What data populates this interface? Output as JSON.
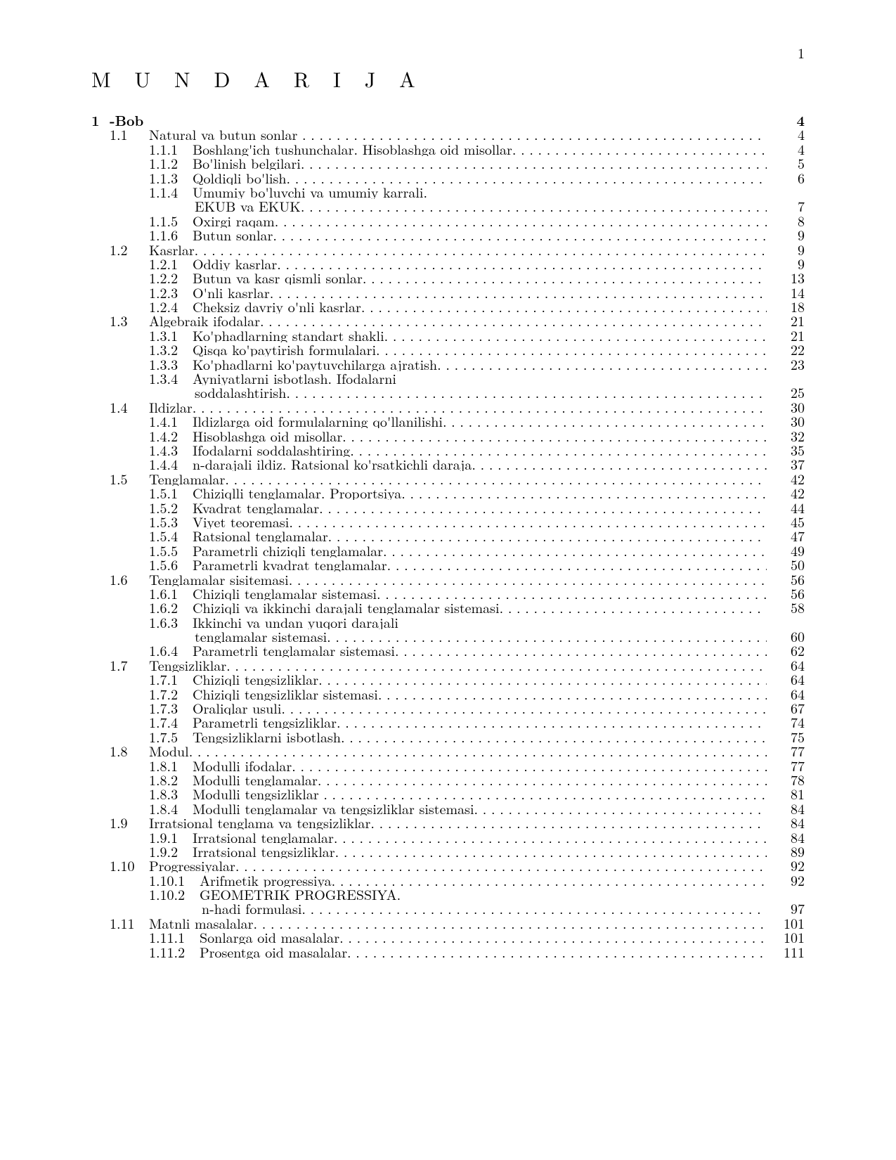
{
  "page": {
    "number": "1"
  },
  "title": "M U N D A R I J A",
  "toc": [
    {
      "level": 0,
      "num": "1",
      "txt": "-Bob",
      "pg": "4",
      "dots": false
    },
    {
      "level": 1,
      "num": "1.1",
      "txt": "Natural va butun sonlar",
      "pg": "4",
      "dots": true
    },
    {
      "level": 2,
      "num": "1.1.1",
      "txt": "Boshlang'ich tushunchalar. Hisoblashga oid misollar.",
      "pg": "4",
      "dots": true
    },
    {
      "level": 2,
      "num": "1.1.2",
      "txt": "Bo'linish belgilari.",
      "pg": "5",
      "dots": true
    },
    {
      "level": 2,
      "num": "1.1.3",
      "txt": "Qoldiqli bo'lish.",
      "pg": "6",
      "dots": true
    },
    {
      "level": 2,
      "num": "1.1.4",
      "txt": "Umumiy bo'luvchi va umumiy karrali.",
      "dots": false
    },
    {
      "level": "cont",
      "txt": "EKUB va EKUK.",
      "pg": "7",
      "dots": true
    },
    {
      "level": 2,
      "num": "1.1.5",
      "txt": "Oxirgi raqam.",
      "pg": "8",
      "dots": true
    },
    {
      "level": 2,
      "num": "1.1.6",
      "txt": "Butun sonlar.",
      "pg": "9",
      "dots": true
    },
    {
      "level": 1,
      "num": "1.2",
      "txt": "Kasrlar.",
      "pg": "9",
      "dots": true
    },
    {
      "level": 2,
      "num": "1.2.1",
      "txt": "Oddiy kasrlar.",
      "pg": "9",
      "dots": true
    },
    {
      "level": 2,
      "num": "1.2.2",
      "txt": "Butun va kasr qismli sonlar.",
      "pg": "13",
      "dots": true
    },
    {
      "level": 2,
      "num": "1.2.3",
      "txt": "O'nli kasrlar.",
      "pg": "14",
      "dots": true
    },
    {
      "level": 2,
      "num": "1.2.4",
      "txt": "Cheksiz davriy o'nli kasrlar.",
      "pg": "18",
      "dots": true
    },
    {
      "level": 1,
      "num": "1.3",
      "txt": "Algebraik ifodalar.",
      "pg": "21",
      "dots": true
    },
    {
      "level": 2,
      "num": "1.3.1",
      "txt": "Ko'phadlarning standart shakli.",
      "pg": "21",
      "dots": true
    },
    {
      "level": 2,
      "num": "1.3.2",
      "txt": "Qisqa ko'paytirish formulalari.",
      "pg": "22",
      "dots": true
    },
    {
      "level": 2,
      "num": "1.3.3",
      "txt": "Ko'phadlarni ko'paytuvchilarga ajratish.",
      "pg": "23",
      "dots": true
    },
    {
      "level": 2,
      "num": "1.3.4",
      "txt": "Ayniyatlarni isbotlash. Ifodalarni",
      "dots": false
    },
    {
      "level": "cont",
      "txt": "soddalashtirish.",
      "pg": "25",
      "dots": true
    },
    {
      "level": 1,
      "num": "1.4",
      "txt": "Ildizlar.",
      "pg": "30",
      "dots": true
    },
    {
      "level": 2,
      "num": "1.4.1",
      "txt": "Ildizlarga oid formulalarning qo'llanilishi.",
      "pg": "30",
      "dots": true
    },
    {
      "level": 2,
      "num": "1.4.2",
      "txt": "Hisoblashga oid misollar.",
      "pg": "32",
      "dots": true
    },
    {
      "level": 2,
      "num": "1.4.3",
      "txt": "Ifodalarni soddalashtiring.",
      "pg": "35",
      "dots": true
    },
    {
      "level": 2,
      "num": "1.4.4",
      "txt": "n-darajali ildiz. Ratsional ko'rsatkichli daraja.",
      "pg": "37",
      "dots": true
    },
    {
      "level": 1,
      "num": "1.5",
      "txt": "Tenglamalar.",
      "pg": "42",
      "dots": true
    },
    {
      "level": 2,
      "num": "1.5.1",
      "txt": "Chiziqlli tenglamalar. Proportsiya.",
      "pg": "42",
      "dots": true
    },
    {
      "level": 2,
      "num": "1.5.2",
      "txt": "Kvadrat tenglamalar.",
      "pg": "44",
      "dots": true
    },
    {
      "level": 2,
      "num": "1.5.3",
      "txt": "Viyet teoremasi.",
      "pg": "45",
      "dots": true
    },
    {
      "level": 2,
      "num": "1.5.4",
      "txt": "Ratsional tenglamalar.",
      "pg": "47",
      "dots": true
    },
    {
      "level": 2,
      "num": "1.5.5",
      "txt": "Parametrli chiziqli tenglamalar.",
      "pg": "49",
      "dots": true
    },
    {
      "level": 2,
      "num": "1.5.6",
      "txt": "Parametrli kvadrat tenglamalar.",
      "pg": "50",
      "dots": true
    },
    {
      "level": 1,
      "num": "1.6",
      "txt": "Tenglamalar sisitemasi.",
      "pg": "56",
      "dots": true
    },
    {
      "level": 2,
      "num": "1.6.1",
      "txt": "Chiziqli tenglamalar sistemasi.",
      "pg": "56",
      "dots": true
    },
    {
      "level": 2,
      "num": "1.6.2",
      "txt": "Chiziqli va ikkinchi darajali tenglamalar sistemasi.",
      "pg": "58",
      "dots": true
    },
    {
      "level": 2,
      "num": "1.6.3",
      "txt": "Ikkinchi va undan yuqori darajali",
      "dots": false
    },
    {
      "level": "cont",
      "txt": "tenglamalar sistemasi.",
      "pg": "60",
      "dots": true
    },
    {
      "level": 2,
      "num": "1.6.4",
      "txt": "Parametrli tenglamalar sistemasi.",
      "pg": "62",
      "dots": true
    },
    {
      "level": 1,
      "num": "1.7",
      "txt": "Tengsizliklar.",
      "pg": "64",
      "dots": true
    },
    {
      "level": 2,
      "num": "1.7.1",
      "txt": "Chiziqli tengsizliklar.",
      "pg": "64",
      "dots": true
    },
    {
      "level": 2,
      "num": "1.7.2",
      "txt": "Chiziqli tengsizliklar sistemasi.",
      "pg": "64",
      "dots": true
    },
    {
      "level": 2,
      "num": "1.7.3",
      "txt": "Oraliqlar usuli.",
      "pg": "67",
      "dots": true
    },
    {
      "level": 2,
      "num": "1.7.4",
      "txt": "Parametrli tengsizliklar.",
      "pg": "74",
      "dots": true
    },
    {
      "level": 2,
      "num": "1.7.5",
      "txt": "Tengsizliklarni isbotlash.",
      "pg": "75",
      "dots": true
    },
    {
      "level": 1,
      "num": "1.8",
      "txt": "Modul.",
      "pg": "77",
      "dots": true
    },
    {
      "level": 2,
      "num": "1.8.1",
      "txt": "Modulli ifodalar.",
      "pg": "77",
      "dots": true
    },
    {
      "level": 2,
      "num": "1.8.2",
      "txt": "Modulli tenglamalar.",
      "pg": "78",
      "dots": true
    },
    {
      "level": 2,
      "num": "1.8.3",
      "txt": "Modulli tengsizliklar",
      "pg": "81",
      "dots": true
    },
    {
      "level": 2,
      "num": "1.8.4",
      "txt": "Modulli tenglamalar va tengsizliklar sistemasi.",
      "pg": "84",
      "dots": true
    },
    {
      "level": 1,
      "num": "1.9",
      "txt": "Irratsional tenglama va tengsizliklar.",
      "pg": "84",
      "dots": true
    },
    {
      "level": 2,
      "num": "1.9.1",
      "txt": "Irratsional tenglamalar.",
      "pg": "84",
      "dots": true
    },
    {
      "level": 2,
      "num": "1.9.2",
      "txt": "Irratsional tengsizliklar.",
      "pg": "89",
      "dots": true
    },
    {
      "level": 1,
      "num": "1.10",
      "txt": "Progressiyalar.",
      "pg": "92",
      "dots": true
    },
    {
      "level": "2w",
      "num": "1.10.1",
      "txt": "Arifmetik progressiya.",
      "pg": "92",
      "dots": true
    },
    {
      "level": "2w",
      "num": "1.10.2",
      "txt": "GEOMETRIK PROGRESSIYA.",
      "dots": false
    },
    {
      "level": "contw",
      "txt": "n-hadi formulasi.",
      "pg": "97",
      "dots": true
    },
    {
      "level": 1,
      "num": "1.11",
      "txt": "Matnli masalalar.",
      "pg": "101",
      "dots": true
    },
    {
      "level": "2w",
      "num": "1.11.1",
      "txt": "Sonlarga oid masalalar.",
      "pg": "101",
      "dots": true
    },
    {
      "level": "2w",
      "num": "1.11.2",
      "txt": "Prosentga oid masalalar.",
      "pg": "111",
      "dots": true
    }
  ]
}
